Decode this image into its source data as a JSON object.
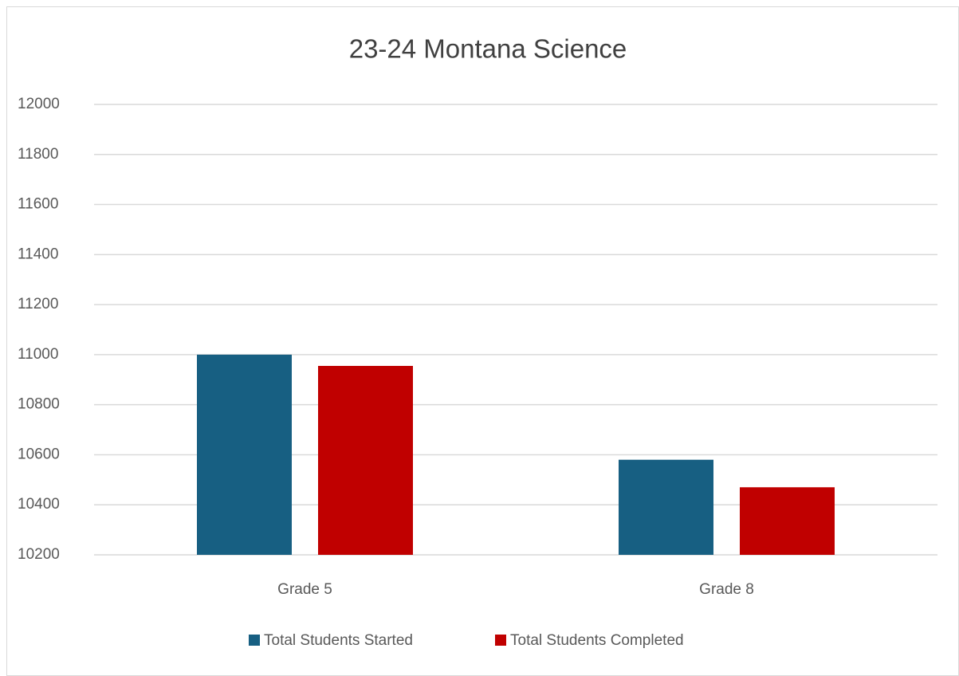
{
  "chart_data": {
    "type": "bar",
    "title": "23-24 Montana Science",
    "categories": [
      "Grade 5",
      "Grade 8"
    ],
    "series": [
      {
        "name": "Total Students Started",
        "color": "#175f82",
        "values": [
          11000,
          10580
        ]
      },
      {
        "name": "Total Students Completed",
        "color": "#c00000",
        "values": [
          10955,
          10470
        ]
      }
    ],
    "ylim": [
      10200,
      12000
    ],
    "yticks": [
      10200,
      10400,
      10600,
      10800,
      11000,
      11200,
      11400,
      11600,
      11800,
      12000
    ],
    "grid": true,
    "legend": "bottom"
  }
}
